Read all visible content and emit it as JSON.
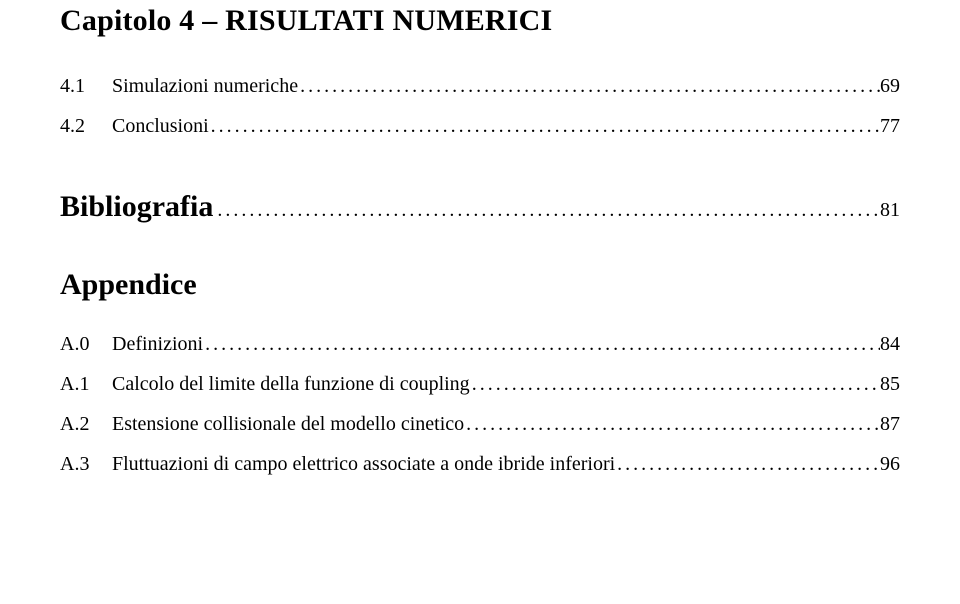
{
  "chapter": {
    "title": "Capitolo 4 – RISULTATI NUMERICI",
    "items": [
      {
        "num": "4.1",
        "label": "Simulazioni numeriche",
        "page": "69"
      },
      {
        "num": "4.2",
        "label": "Conclusioni",
        "page": "77"
      }
    ]
  },
  "bibliography": {
    "title": "Bibliografia",
    "page": "81"
  },
  "appendix": {
    "title": "Appendice",
    "items": [
      {
        "num": "A.0",
        "label": "Definizioni",
        "page": "84"
      },
      {
        "num": "A.1",
        "label": "Calcolo del limite della funzione di coupling",
        "page": "85"
      },
      {
        "num": "A.2",
        "label": "Estensione collisionale del modello cinetico",
        "page": "87"
      },
      {
        "num": "A.3",
        "label": "Fluttuazioni di campo elettrico associate a onde ibride inferiori",
        "page": "96"
      }
    ]
  },
  "style": {
    "background_color": "#ffffff",
    "text_color": "#000000",
    "heading_fontsize_pt": 22,
    "body_fontsize_pt": 15,
    "font_family": "Palatino / serif"
  }
}
